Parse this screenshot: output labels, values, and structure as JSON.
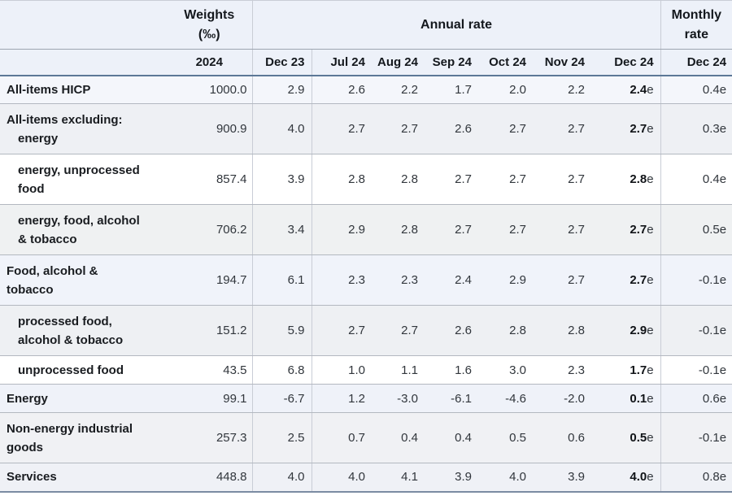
{
  "table": {
    "header": {
      "weights_line1": "Weights",
      "weights_line2": "(‰)",
      "annual": "Annual rate",
      "monthly_line1": "Monthly",
      "monthly_line2": "rate",
      "weights_year": "2024",
      "months": [
        "Dec 23",
        "Jul 24",
        "Aug 24",
        "Sep 24",
        "Oct 24",
        "Nov 24",
        "Dec 24"
      ],
      "monthly_month": "Dec 24"
    },
    "rows": [
      {
        "label_lines": [
          "All-items HICP"
        ],
        "indent": "none",
        "bg": "#f4f6fb",
        "weight": "1000.0",
        "annual": [
          "2.9",
          "2.6",
          "2.2",
          "1.7",
          "2.0",
          "2.2"
        ],
        "dec24": "2.4",
        "dec24_flag": "e",
        "monthly": "0.4e"
      },
      {
        "label_lines": [
          "All-items excluding:",
          "energy"
        ],
        "indent": "hang",
        "bg": "#eef0f4",
        "weight": "900.9",
        "annual": [
          "4.0",
          "2.7",
          "2.7",
          "2.6",
          "2.7",
          "2.7"
        ],
        "dec24": "2.7",
        "dec24_flag": "e",
        "monthly": "0.3e"
      },
      {
        "label_lines": [
          "energy, unprocessed",
          "food"
        ],
        "indent": "indent",
        "bg": "#ffffff",
        "weight": "857.4",
        "annual": [
          "3.9",
          "2.8",
          "2.8",
          "2.7",
          "2.7",
          "2.7"
        ],
        "dec24": "2.8",
        "dec24_flag": "e",
        "monthly": "0.4e"
      },
      {
        "label_lines": [
          "energy, food, alcohol",
          "& tobacco"
        ],
        "indent": "indent",
        "bg": "#eff1f2",
        "weight": "706.2",
        "annual": [
          "3.4",
          "2.9",
          "2.8",
          "2.7",
          "2.7",
          "2.7"
        ],
        "dec24": "2.7",
        "dec24_flag": "e",
        "monthly": "0.5e"
      },
      {
        "label_lines": [
          "Food, alcohol &",
          "tobacco"
        ],
        "indent": "none",
        "bg": "#f0f3fa",
        "weight": "194.7",
        "annual": [
          "6.1",
          "2.3",
          "2.3",
          "2.4",
          "2.9",
          "2.7"
        ],
        "dec24": "2.7",
        "dec24_flag": "e",
        "monthly": "-0.1e"
      },
      {
        "label_lines": [
          "processed food,",
          "alcohol & tobacco"
        ],
        "indent": "indent",
        "bg": "#eef0f3",
        "weight": "151.2",
        "annual": [
          "5.9",
          "2.7",
          "2.7",
          "2.6",
          "2.8",
          "2.8"
        ],
        "dec24": "2.9",
        "dec24_flag": "e",
        "monthly": "-0.1e"
      },
      {
        "label_lines": [
          "unprocessed food"
        ],
        "indent": "indent",
        "bg": "#ffffff",
        "weight": "43.5",
        "annual": [
          "6.8",
          "1.0",
          "1.1",
          "1.6",
          "3.0",
          "2.3"
        ],
        "dec24": "1.7",
        "dec24_flag": "e",
        "monthly": "-0.1e"
      },
      {
        "label_lines": [
          "Energy"
        ],
        "indent": "none",
        "bg": "#eff2f9",
        "weight": "99.1",
        "annual": [
          "-6.7",
          "1.2",
          "-3.0",
          "-6.1",
          "-4.6",
          "-2.0"
        ],
        "dec24": "0.1",
        "dec24_flag": "e",
        "monthly": "0.6e"
      },
      {
        "label_lines": [
          "Non-energy industrial",
          "goods"
        ],
        "indent": "none",
        "bg": "#f0f1f4",
        "weight": "257.3",
        "annual": [
          "2.5",
          "0.7",
          "0.4",
          "0.4",
          "0.5",
          "0.6"
        ],
        "dec24": "0.5",
        "dec24_flag": "e",
        "monthly": "-0.1e"
      },
      {
        "label_lines": [
          "Services"
        ],
        "indent": "none",
        "bg": "#eff1f6",
        "weight": "448.8",
        "annual": [
          "4.0",
          "4.0",
          "4.1",
          "3.9",
          "4.0",
          "3.9"
        ],
        "dec24": "4.0",
        "dec24_flag": "e",
        "monthly": "0.8e"
      }
    ]
  },
  "colors": {
    "header_bg": "#edf1f9",
    "header_separator": "#9da5b1",
    "header_underline": "#5c7897",
    "row_separator": "#b3b8c0",
    "column_line": "#c9cdd6",
    "bottom_border": "#7b8ba2"
  }
}
